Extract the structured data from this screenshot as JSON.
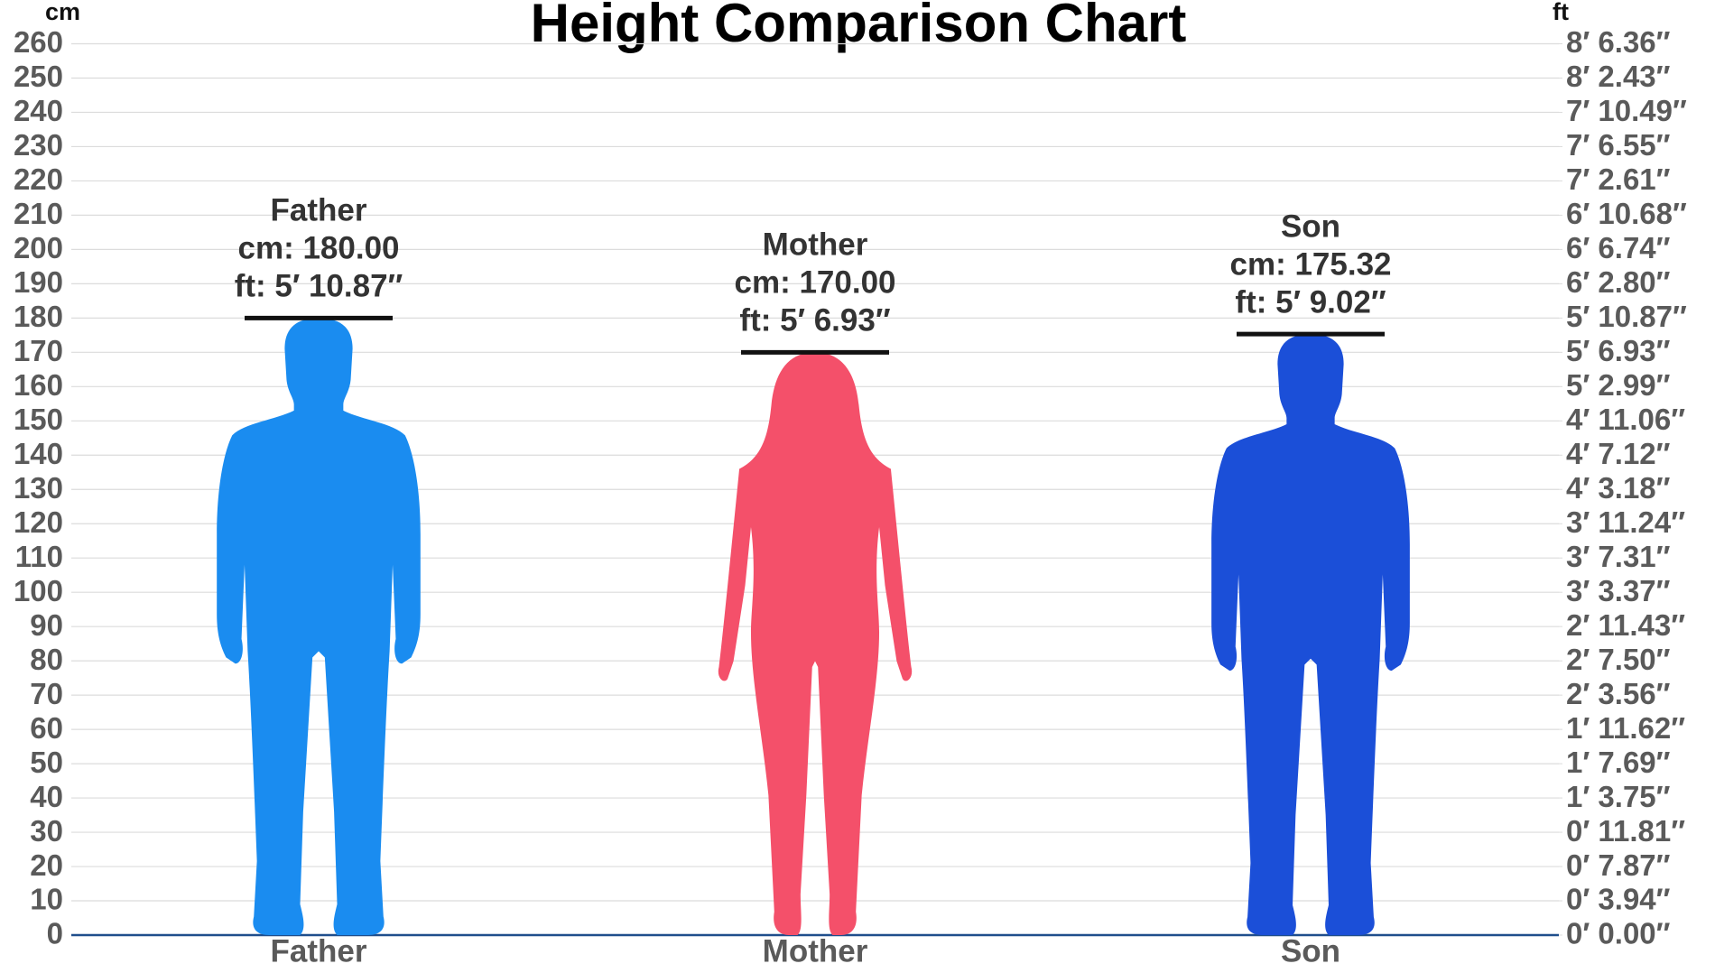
{
  "chart_data": {
    "type": "height-comparison",
    "title": "Height Comparison Chart",
    "y_axis_label": "cm",
    "y2_axis_label": "ft",
    "categories": [
      "Father",
      "Mother",
      "Son"
    ],
    "values": [
      180,
      170,
      175.32
    ],
    "value_labels": [
      "cm: 180.00",
      "cm: 170.00",
      "cm: 175.32"
    ],
    "ft_labels": [
      "ft: 5′ 10.87″",
      "ft: 5′ 6.93″",
      "ft: 5′ 9.02″"
    ],
    "colors": [
      "#1a8cf0",
      "#f4506a",
      "#1b4fd8"
    ],
    "shapes": [
      "male",
      "female",
      "male"
    ],
    "ylim": [
      0,
      260
    ],
    "yticks": [
      0,
      10,
      20,
      30,
      40,
      50,
      60,
      70,
      80,
      90,
      100,
      110,
      120,
      130,
      140,
      150,
      160,
      170,
      180,
      190,
      200,
      210,
      220,
      230,
      240,
      250,
      260
    ],
    "y2lim": [
      0,
      260
    ],
    "y2ticks": [
      {
        "value": 0,
        "label": "0′ 0.00″"
      },
      {
        "value": 10,
        "label": "0′ 3.94″"
      },
      {
        "value": 20,
        "label": "0′ 7.87″"
      },
      {
        "value": 30,
        "label": "0′ 11.81″"
      },
      {
        "value": 40,
        "label": "1′ 3.75″"
      },
      {
        "value": 50,
        "label": "1′ 7.69″"
      },
      {
        "value": 60,
        "label": "1′ 11.62″"
      },
      {
        "value": 70,
        "label": "2′ 3.56″"
      },
      {
        "value": 80,
        "label": "2′ 7.50″"
      },
      {
        "value": 90,
        "label": "2′ 11.43″"
      },
      {
        "value": 100,
        "label": "3′ 3.37″"
      },
      {
        "value": 110,
        "label": "3′ 7.31″"
      },
      {
        "value": 120,
        "label": "3′ 11.24″"
      },
      {
        "value": 130,
        "label": "4′ 3.18″"
      },
      {
        "value": 140,
        "label": "4′ 7.12″"
      },
      {
        "value": 150,
        "label": "4′ 11.06″"
      },
      {
        "value": 160,
        "label": "5′ 2.99″"
      },
      {
        "value": 170,
        "label": "5′ 6.93″"
      },
      {
        "value": 180,
        "label": "5′ 10.87″"
      },
      {
        "value": 190,
        "label": "6′ 2.80″"
      },
      {
        "value": 200,
        "label": "6′ 6.74″"
      },
      {
        "value": 210,
        "label": "6′ 10.68″"
      },
      {
        "value": 220,
        "label": "7′ 2.61″"
      },
      {
        "value": 230,
        "label": "7′ 6.55″"
      },
      {
        "value": 240,
        "label": "7′ 10.49″"
      },
      {
        "value": 250,
        "label": "8′ 2.43″"
      },
      {
        "value": 260,
        "label": "8′ 6.36″"
      }
    ],
    "grid": true
  }
}
